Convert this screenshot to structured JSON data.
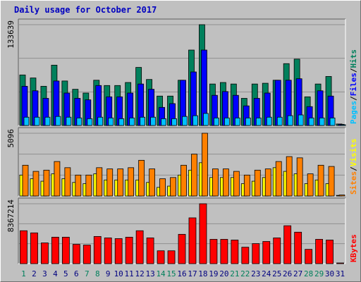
{
  "title": "Daily usage for October 2017",
  "colors": {
    "hits": "#00805c",
    "files": "#0000ff",
    "pages": "#00c0ff",
    "visits": "#ffff00",
    "sites": "#ff8000",
    "kbytes": "#ff0000",
    "plot_bg": "#c0c0c0",
    "weekday_label": "#000080",
    "weekend_label": "#00805c"
  },
  "chart_data": [
    {
      "type": "bar",
      "panel": "hits-files-pages",
      "ymax_label": "133639",
      "ylim": [
        0,
        133639
      ],
      "legend": [
        "Pages",
        "/",
        "Files",
        "/",
        "Hits"
      ],
      "categories": [
        "1",
        "2",
        "3",
        "4",
        "5",
        "6",
        "7",
        "8",
        "9",
        "10",
        "11",
        "12",
        "13",
        "14",
        "15",
        "16",
        "17",
        "18",
        "19",
        "20",
        "21",
        "22",
        "23",
        "24",
        "25",
        "26",
        "27",
        "28",
        "29",
        "30",
        "31"
      ],
      "series": [
        {
          "name": "Hits",
          "values": [
            67000,
            63000,
            52000,
            80000,
            59000,
            48000,
            43000,
            60000,
            53000,
            53000,
            57000,
            77000,
            61000,
            39000,
            39000,
            60000,
            100000,
            133639,
            55000,
            57000,
            55000,
            36000,
            55000,
            56000,
            60000,
            82000,
            88000,
            38000,
            55000,
            65000,
            2000
          ]
        },
        {
          "name": "Files",
          "values": [
            52000,
            46000,
            36000,
            59000,
            43000,
            36000,
            34000,
            53000,
            38000,
            38000,
            43000,
            55000,
            48000,
            24000,
            29000,
            60000,
            71000,
            100000,
            40000,
            45000,
            40000,
            26000,
            36000,
            43000,
            60000,
            60000,
            62000,
            25000,
            46000,
            39000,
            1500
          ]
        },
        {
          "name": "Pages",
          "values": [
            11000,
            11000,
            11000,
            12000,
            11000,
            10000,
            9000,
            11000,
            10000,
            9000,
            10000,
            11000,
            11000,
            9000,
            9000,
            12000,
            13000,
            16000,
            10000,
            10000,
            10000,
            10000,
            10000,
            11000,
            11000,
            13000,
            14000,
            10000,
            10000,
            10000,
            1000
          ]
        }
      ]
    },
    {
      "type": "bar",
      "panel": "visits-sites",
      "ymax_label": "5096",
      "ylim": [
        0,
        5096
      ],
      "legend": [
        "Sites",
        "/",
        "Visits"
      ],
      "categories": [
        "1",
        "2",
        "3",
        "4",
        "5",
        "6",
        "7",
        "8",
        "9",
        "10",
        "11",
        "12",
        "13",
        "14",
        "15",
        "16",
        "17",
        "18",
        "19",
        "20",
        "21",
        "22",
        "23",
        "24",
        "25",
        "26",
        "27",
        "28",
        "29",
        "30",
        "31"
      ],
      "series": [
        {
          "name": "Visits",
          "values": [
            1700,
            1400,
            1200,
            1800,
            1400,
            1100,
            1000,
            1800,
            1300,
            1300,
            1300,
            1300,
            1100,
            700,
            800,
            1700,
            2100,
            2700,
            1500,
            1500,
            1500,
            1000,
            1200,
            1500,
            2300,
            2000,
            1800,
            1000,
            1300,
            1000,
            50
          ]
        },
        {
          "name": "Sites",
          "values": [
            2500,
            2000,
            2100,
            2800,
            2300,
            1700,
            1700,
            2300,
            2200,
            2200,
            2300,
            2900,
            2200,
            1400,
            1500,
            2500,
            3400,
            5096,
            2200,
            2200,
            2000,
            1700,
            2100,
            2200,
            2800,
            3200,
            3100,
            1800,
            2500,
            2400,
            80
          ]
        }
      ]
    },
    {
      "type": "bar",
      "panel": "kbytes",
      "ymax_label": "8367214",
      "ylim": [
        0,
        8367214
      ],
      "legend": [
        "KBytes"
      ],
      "categories": [
        "1",
        "2",
        "3",
        "4",
        "5",
        "6",
        "7",
        "8",
        "9",
        "10",
        "11",
        "12",
        "13",
        "14",
        "15",
        "16",
        "17",
        "18",
        "19",
        "20",
        "21",
        "22",
        "23",
        "24",
        "25",
        "26",
        "27",
        "28",
        "29",
        "30",
        "31"
      ],
      "series": [
        {
          "name": "KBytes",
          "values": [
            4600000,
            4300000,
            2900000,
            3700000,
            3700000,
            2700000,
            2600000,
            3800000,
            3600000,
            3500000,
            3700000,
            4600000,
            3600000,
            1800000,
            1800000,
            4100000,
            6400000,
            8367214,
            3400000,
            3400000,
            3300000,
            2300000,
            2800000,
            3100000,
            3600000,
            5300000,
            4400000,
            2000000,
            3400000,
            3300000,
            100000
          ]
        }
      ]
    }
  ],
  "weekend_days": [
    "1",
    "7",
    "8",
    "14",
    "15",
    "21",
    "22",
    "28",
    "29"
  ]
}
